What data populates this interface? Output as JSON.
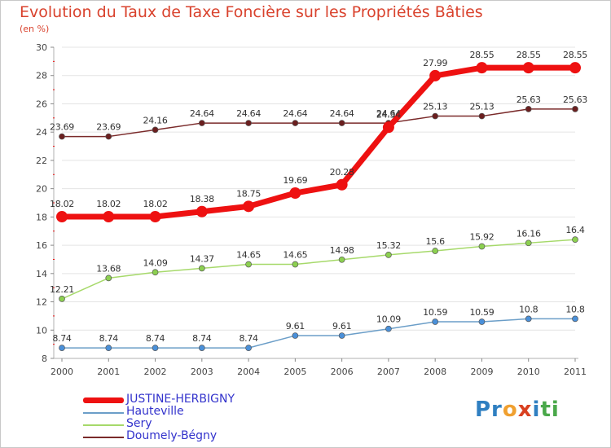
{
  "title": "Evolution du Taux de Taxe Foncière sur les Propriétés Bâties",
  "unit_label": "(en %)",
  "logo": {
    "parts": [
      "Pr",
      "o",
      "x",
      "i",
      "ti"
    ],
    "colors": [
      "#2f7fc1",
      "#f0a030",
      "#d94020",
      "#2f7fc1",
      "#4aa84a"
    ]
  },
  "colors": {
    "title": "#d9422d",
    "axis": "#b0b0b0",
    "label": "#444444",
    "legend_text": "#3333cc"
  },
  "chart_data": {
    "type": "line",
    "title": "Evolution du Taux de Taxe Foncière sur les Propriétés Bâties",
    "xlabel": "",
    "ylabel": "(en %)",
    "ylim": [
      8,
      30
    ],
    "yticks": [
      8,
      10,
      12,
      14,
      16,
      18,
      20,
      22,
      24,
      26,
      28,
      30
    ],
    "categories": [
      "2000",
      "2001",
      "2002",
      "2003",
      "2004",
      "2005",
      "2006",
      "2007",
      "2008",
      "2009",
      "2010",
      "2011"
    ],
    "series": [
      {
        "name": "JUSTINE-HERBIGNY",
        "color": "#ee1111",
        "width": 7,
        "marker": 7,
        "values": [
          18.02,
          18.02,
          18.02,
          18.38,
          18.75,
          19.69,
          20.28,
          24.34,
          27.99,
          28.55,
          28.55,
          28.55
        ],
        "labels": [
          "18.02",
          "18.02",
          "18.02",
          "18.38",
          "18.75",
          "19.69",
          "20.28",
          "24.34",
          "27.99",
          "28.55",
          "28.55",
          "28.55"
        ]
      },
      {
        "name": "Hauteville",
        "color": "#6b9ec8",
        "width": 1.5,
        "marker": 3.5,
        "marker_fill": "#4a90d9",
        "values": [
          8.74,
          8.74,
          8.74,
          8.74,
          8.74,
          9.61,
          9.61,
          10.09,
          10.59,
          10.59,
          10.8,
          10.8
        ],
        "labels": [
          "8.74",
          "8.74",
          "8.74",
          "8.74",
          "8.74",
          "9.61",
          "9.61",
          "10.09",
          "10.59",
          "10.59",
          "10.8",
          "10.8"
        ]
      },
      {
        "name": "Sery",
        "color": "#a6d96a",
        "width": 1.5,
        "marker": 3.5,
        "marker_fill": "#8cd050",
        "values": [
          12.21,
          13.68,
          14.09,
          14.37,
          14.65,
          14.65,
          14.98,
          15.32,
          15.6,
          15.92,
          16.16,
          16.4
        ],
        "labels": [
          "12.21",
          "13.68",
          "14.09",
          "14.37",
          "14.65",
          "14.65",
          "14.98",
          "15.32",
          "15.6",
          "15.92",
          "16.16",
          "16.4"
        ]
      },
      {
        "name": "Doumely-Bégny",
        "color": "#7a2a2a",
        "width": 1.5,
        "marker": 3.5,
        "marker_fill": "#6b1f1f",
        "values": [
          23.69,
          23.69,
          24.16,
          24.64,
          24.64,
          24.64,
          24.64,
          24.64,
          25.13,
          25.13,
          25.63,
          25.63
        ],
        "labels": [
          "23.69",
          "23.69",
          "24.16",
          "24.64",
          "24.64",
          "24.64",
          "24.64",
          "24.64",
          "25.13",
          "25.13",
          "25.63",
          "25.63"
        ]
      }
    ]
  }
}
